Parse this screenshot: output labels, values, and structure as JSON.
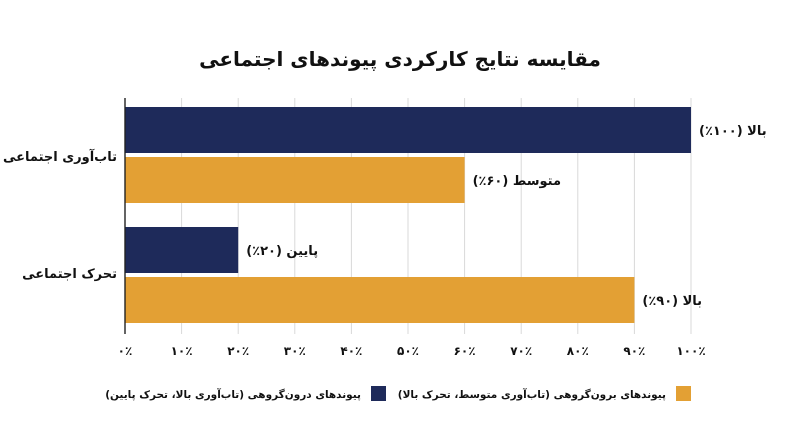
{
  "chart_data": {
    "type": "bar",
    "orientation": "horizontal",
    "title": "مقایسه نتایج کارکردی پیوندهای اجتماعی",
    "categories": [
      "تاب‌آوری اجتماعی",
      "تحرک اجتماعی"
    ],
    "series": [
      {
        "name": "پیوندهای درون‌گروهی (تاب‌آوری بالا، تحرک پایین)",
        "color": "#1e2a5a",
        "values": [
          100,
          20
        ],
        "labels": [
          "بالا (۱۰۰٪)",
          "پایین (۲۰٪)"
        ]
      },
      {
        "name": "پیوندهای برون‌گروهی (تاب‌آوری متوسط، تحرک بالا)",
        "color": "#e3a034",
        "values": [
          60,
          90
        ],
        "labels": [
          "متوسط (۶۰٪)",
          "بالا (۹۰٪)"
        ]
      }
    ],
    "xlim": [
      0,
      100
    ],
    "xticks": [
      0,
      10,
      20,
      30,
      40,
      50,
      60,
      70,
      80,
      90,
      100
    ],
    "xtick_labels": [
      "۰٪",
      "۱۰٪",
      "۲۰٪",
      "۳۰٪",
      "۴۰٪",
      "۵۰٪",
      "۶۰٪",
      "۷۰٪",
      "۸۰٪",
      "۹۰٪",
      "۱۰۰٪"
    ],
    "grid": true,
    "legend_position": "bottom"
  }
}
